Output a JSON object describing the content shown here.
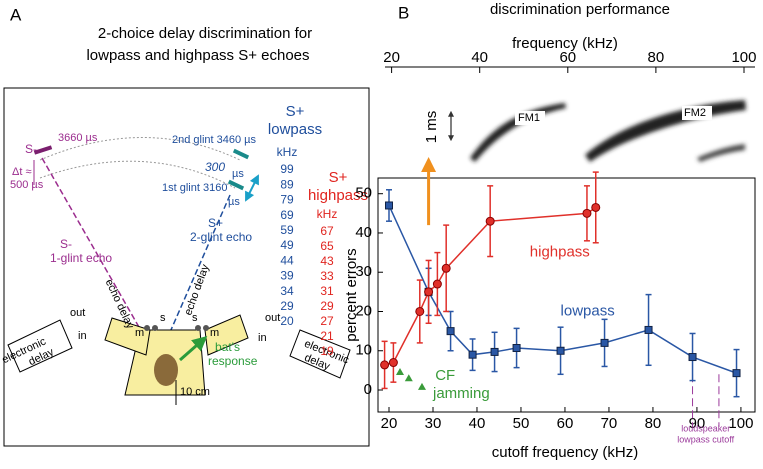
{
  "panel_a": {
    "label": "A",
    "title_lines": [
      "2-choice delay discrimination for",
      "lowpass and highpass S+ echoes"
    ],
    "s_minus": "S-",
    "s_minus_delay": "3660 µs",
    "delta_t": "Δt ≈",
    "delta_t_value": "500 µs",
    "s_minus_echo": [
      "S-",
      "1-glint echo"
    ],
    "glint2": "2nd glint 3460 µs",
    "glint_sep": "300",
    "glint_sep_unit": "µs",
    "glint1": "1st glint 3160",
    "glint1_unit": "µs",
    "s_plus_echo": [
      "S+",
      "2-glint echo"
    ],
    "echo_delay": "echo delay",
    "lowpass_header": [
      "S+",
      "lowpass",
      "kHz"
    ],
    "lowpass_khz": [
      99,
      89,
      79,
      69,
      59,
      49,
      44,
      39,
      34,
      29,
      20
    ],
    "highpass_header": [
      "S+",
      "highpass",
      "kHz"
    ],
    "highpass_khz": [
      67,
      65,
      43,
      33,
      31,
      29,
      27,
      21,
      19
    ],
    "delay_box": [
      "electronic",
      "delay"
    ],
    "out": "out",
    "in": "in",
    "m": "m",
    "s": "s",
    "response": [
      "bat's",
      "response"
    ],
    "scale": "10 cm"
  },
  "chart_data": {
    "type": "line",
    "panel_label": "B",
    "title": "discrimination performance",
    "x2label": "frequency (kHz)",
    "x2lim": [
      18.5,
      102.5
    ],
    "x2ticks": [
      20,
      40,
      60,
      80,
      100
    ],
    "spectrogram_labels": [
      "FM1",
      "FM2"
    ],
    "time_scale": "1 ms",
    "xlabel": "cutoff frequency (kHz)",
    "ylabel": "percent errors",
    "xlim": [
      17.5,
      103.2
    ],
    "xticks": [
      20,
      30,
      40,
      50,
      60,
      70,
      80,
      90,
      100
    ],
    "ylim": [
      -5.6,
      54
    ],
    "yticks": [
      0,
      10,
      20,
      30,
      40,
      50
    ],
    "series": [
      {
        "name": "lowpass",
        "color": "#2a57a5",
        "marker": "square",
        "x": [
          20,
          29,
          34,
          39,
          44,
          49,
          59,
          69,
          79,
          89,
          99
        ],
        "values": [
          47,
          25,
          15,
          9,
          9.7,
          10.7,
          10,
          12,
          15.3,
          8.4,
          4.3
        ],
        "errors": [
          4,
          6,
          5,
          4,
          5,
          5,
          6,
          6,
          9,
          6,
          6
        ]
      },
      {
        "name": "highpass",
        "color": "#e0302a",
        "marker": "circle",
        "x": [
          19,
          21,
          27,
          29,
          31,
          33,
          43,
          65,
          67
        ],
        "values": [
          6.4,
          7,
          20,
          25,
          27,
          31,
          43,
          45,
          46.5
        ],
        "errors": [
          6,
          5,
          8,
          8,
          8,
          11,
          9,
          7,
          9
        ]
      }
    ],
    "jamming": {
      "color": "#3a9b3a",
      "x": [
        22.5,
        24.5,
        27.5
      ],
      "values": [
        4.6,
        3,
        0.8
      ],
      "labels": [
        "CF",
        "jamming"
      ]
    },
    "cutoff_lines": {
      "color": "#9b3a9b",
      "x": [
        89,
        95
      ],
      "labels": [
        "loudspeaker",
        "lowpass cutoff"
      ]
    }
  }
}
